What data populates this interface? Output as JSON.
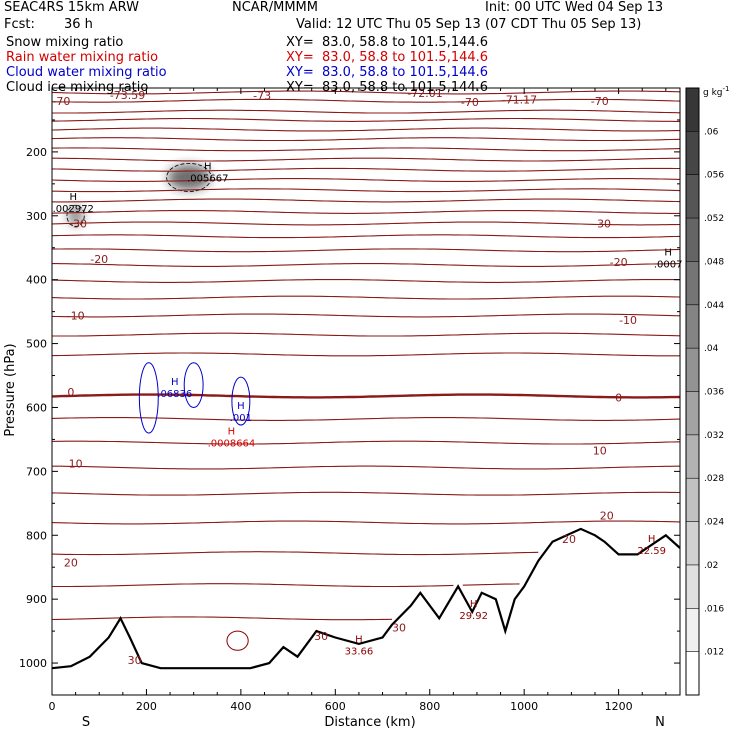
{
  "header": {
    "model": "SEAC4RS 15km ARW",
    "org": "NCAR/MMMM",
    "init": "Init: 00 UTC Wed 04 Sep 13",
    "fcst_label": "Fcst:",
    "fcst_value": "36 h",
    "valid": "Valid: 12 UTC Thu 05 Sep 13 (07 CDT Thu 05 Sep 13)"
  },
  "legend": [
    {
      "name": "Snow mixing ratio",
      "xy": "XY=  83.0, 58.8 to 101.5,144.6",
      "color": "#000000"
    },
    {
      "name": "Rain water mixing ratio",
      "xy": "XY=  83.0, 58.8 to 101.5,144.6",
      "color": "#d40000"
    },
    {
      "name": "Cloud water mixing ratio",
      "xy": "XY=  83.0, 58.8 to 101.5,144.6",
      "color": "#0000cc"
    },
    {
      "name": "Cloud ice mixing ratio",
      "xy": "XY=  83.0, 58.8 to 101.5,144.6",
      "color": "#000000"
    }
  ],
  "chart_data": {
    "type": "contour_cross_section",
    "xlabel": "Distance (km)",
    "ylabel": "Pressure (hPa)",
    "xlim": [
      0,
      1330
    ],
    "ylim": [
      100,
      1050
    ],
    "x_ticks": [
      0,
      200,
      400,
      600,
      800,
      1000,
      1200
    ],
    "y_ticks": [
      200,
      300,
      400,
      500,
      600,
      700,
      800,
      900,
      1000
    ],
    "endpoints": {
      "left": "S",
      "right": "N"
    },
    "colorbar": {
      "unit": "g kg",
      "unit_exp": "-1",
      "ticks": [
        ".012",
        ".016",
        ".02",
        ".024",
        ".028",
        ".032",
        ".036",
        ".04",
        ".044",
        ".048",
        ".052",
        ".056",
        ".06"
      ]
    },
    "temperature_contours": [
      {
        "p": 107,
        "label": null
      },
      {
        "p": 120,
        "label": "-70"
      },
      {
        "p": 137,
        "label": null
      },
      {
        "p": 150,
        "label": null
      },
      {
        "p": 165,
        "label": null
      },
      {
        "p": 180,
        "label": null
      },
      {
        "p": 196,
        "label": null
      },
      {
        "p": 212,
        "label": null
      },
      {
        "p": 228,
        "label": null
      },
      {
        "p": 244,
        "label": null
      },
      {
        "p": 260,
        "label": null
      },
      {
        "p": 276,
        "label": null
      },
      {
        "p": 294,
        "label": null
      },
      {
        "p": 312,
        "label": "-30"
      },
      {
        "p": 332,
        "label": null
      },
      {
        "p": 354,
        "label": null
      },
      {
        "p": 377,
        "label": "-20"
      },
      {
        "p": 402,
        "label": null
      },
      {
        "p": 428,
        "label": null
      },
      {
        "p": 456,
        "label": "-10"
      },
      {
        "p": 486,
        "label": null
      },
      {
        "p": 517,
        "label": null
      },
      {
        "p": 582,
        "label": "0",
        "bold": true
      },
      {
        "p": 618,
        "label": null
      },
      {
        "p": 655,
        "label": null
      },
      {
        "p": 694,
        "label": "10"
      },
      {
        "p": 735,
        "label": null
      },
      {
        "p": 780,
        "label": null
      },
      {
        "p": 828,
        "label": "20"
      },
      {
        "p": 878,
        "label": null
      },
      {
        "p": 930,
        "label": null
      }
    ],
    "contour_labels": [
      {
        "x": 20,
        "p": 120,
        "text": "-70"
      },
      {
        "x": 160,
        "p": 111,
        "text": "-73.59"
      },
      {
        "x": 445,
        "p": 112,
        "text": "-73"
      },
      {
        "x": 790,
        "p": 108,
        "text": "-72.01"
      },
      {
        "x": 885,
        "p": 122,
        "text": "-70"
      },
      {
        "x": 990,
        "p": 118,
        "text": "-71.17"
      },
      {
        "x": 1160,
        "p": 120,
        "text": "-70"
      },
      {
        "x": 55,
        "p": 312,
        "text": "-30"
      },
      {
        "x": 1165,
        "p": 312,
        "text": "-30"
      },
      {
        "x": 100,
        "p": 368,
        "text": "-20"
      },
      {
        "x": 1200,
        "p": 372,
        "text": "-20"
      },
      {
        "x": 50,
        "p": 456,
        "text": "-10"
      },
      {
        "x": 1220,
        "p": 463,
        "text": "-10"
      },
      {
        "x": 40,
        "p": 576,
        "text": "0"
      },
      {
        "x": 1200,
        "p": 584,
        "text": "0"
      },
      {
        "x": 50,
        "p": 688,
        "text": "10"
      },
      {
        "x": 1160,
        "p": 667,
        "text": "10"
      },
      {
        "x": 40,
        "p": 843,
        "text": "20"
      },
      {
        "x": 1175,
        "p": 769,
        "text": "20"
      },
      {
        "x": 1095,
        "p": 806,
        "text": "20"
      },
      {
        "x": 175,
        "p": 995,
        "text": "30"
      },
      {
        "x": 570,
        "p": 958,
        "text": "30"
      },
      {
        "x": 735,
        "p": 944,
        "text": "30"
      }
    ],
    "extrema": [
      {
        "x": 45,
        "p": 283,
        "text": ".002972",
        "color": "#000000"
      },
      {
        "x": 330,
        "p": 235,
        "text": ".005667",
        "color": "#000000"
      },
      {
        "x": 1305,
        "p": 370,
        "text": ".0007",
        "color": "#000000"
      },
      {
        "x": 260,
        "p": 573,
        "text": ".06836",
        "color": "#0000cc"
      },
      {
        "x": 400,
        "p": 610,
        "text": ".001",
        "color": "#0000cc"
      },
      {
        "x": 380,
        "p": 650,
        "text": ".0008664",
        "color": "#d40000"
      },
      {
        "x": 893,
        "p": 920,
        "text": "29.92",
        "color": "#8b0000"
      },
      {
        "x": 650,
        "p": 976,
        "text": "33.66",
        "color": "#8b0000"
      },
      {
        "x": 1270,
        "p": 818,
        "text": "22.59",
        "color": "#8b0000"
      }
    ],
    "terrain": [
      [
        0,
        1008
      ],
      [
        40,
        1005
      ],
      [
        80,
        990
      ],
      [
        120,
        960
      ],
      [
        145,
        930
      ],
      [
        165,
        960
      ],
      [
        190,
        1000
      ],
      [
        230,
        1008
      ],
      [
        300,
        1008
      ],
      [
        420,
        1008
      ],
      [
        460,
        1000
      ],
      [
        490,
        975
      ],
      [
        520,
        990
      ],
      [
        560,
        950
      ],
      [
        600,
        960
      ],
      [
        650,
        970
      ],
      [
        700,
        960
      ],
      [
        720,
        940
      ],
      [
        760,
        910
      ],
      [
        780,
        890
      ],
      [
        820,
        930
      ],
      [
        860,
        880
      ],
      [
        890,
        920
      ],
      [
        910,
        890
      ],
      [
        940,
        900
      ],
      [
        960,
        950
      ],
      [
        980,
        900
      ],
      [
        1000,
        880
      ],
      [
        1030,
        840
      ],
      [
        1060,
        810
      ],
      [
        1090,
        800
      ],
      [
        1120,
        790
      ],
      [
        1150,
        800
      ],
      [
        1170,
        810
      ],
      [
        1200,
        830
      ],
      [
        1240,
        830
      ],
      [
        1270,
        815
      ],
      [
        1300,
        800
      ],
      [
        1330,
        820
      ]
    ],
    "clouds": [
      {
        "x": 290,
        "p": 240,
        "w": 90,
        "h": 40,
        "color": "#222222"
      },
      {
        "x": 50,
        "p": 300,
        "w": 35,
        "h": 30,
        "color": "#555555"
      }
    ],
    "cloud_water_contours": [
      {
        "x": 205,
        "p": 585,
        "w": 40,
        "h": 110,
        "color": "#0000cc"
      },
      {
        "x": 300,
        "p": 565,
        "w": 40,
        "h": 70,
        "color": "#0000cc"
      },
      {
        "x": 400,
        "p": 590,
        "w": 38,
        "h": 75,
        "color": "#0000cc"
      },
      {
        "x": 393,
        "p": 965,
        "w": 45,
        "h": 30,
        "color": "#8b0000"
      }
    ]
  }
}
